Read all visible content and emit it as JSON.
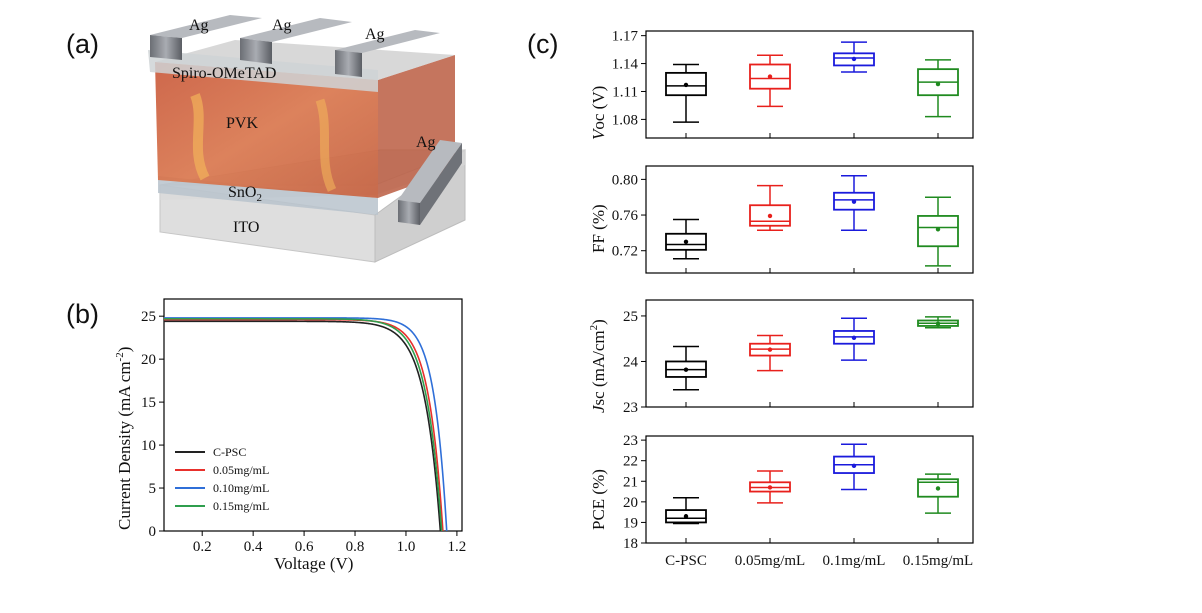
{
  "panels": {
    "a": "(a)",
    "b": "(b)",
    "c": "(c)"
  },
  "device": {
    "electrodes": [
      "Ag",
      "Ag",
      "Ag",
      "Ag"
    ],
    "layers": [
      "Spiro-OMeTAD",
      "PVK",
      "SnO",
      "ITO"
    ],
    "sno2_subscript": "2",
    "colors": {
      "perovskite": "#cc6a48",
      "glass": "#dcdcdc",
      "silver": "#8a8d94"
    }
  },
  "chart_data": [
    {
      "type": "line",
      "title": "",
      "xlabel": "Voltage (V)",
      "ylabel": "Current Density (mA cm",
      "ylabel_sup": "-2",
      "ylabel_close": ")",
      "xlim": [
        0.05,
        1.22
      ],
      "ylim": [
        0,
        27
      ],
      "xticks": [
        "0.2",
        "0.4",
        "0.6",
        "0.8",
        "1.0",
        "1.2"
      ],
      "yticks": [
        "0",
        "5",
        "10",
        "15",
        "20",
        "25"
      ],
      "legend_position": "bottom-left",
      "series": [
        {
          "name": "C-PSC",
          "color": "#222222",
          "jsc": 24.4,
          "voc": 1.135,
          "knee": 0.062
        },
        {
          "name": "0.05mg/mL",
          "color": "#e8302c",
          "jsc": 24.6,
          "voc": 1.145,
          "knee": 0.056
        },
        {
          "name": "0.10mg/mL",
          "color": "#2f6fd8",
          "jsc": 24.8,
          "voc": 1.16,
          "knee": 0.05
        },
        {
          "name": "0.15mg/mL",
          "color": "#2f9e4e",
          "jsc": 24.7,
          "voc": 1.14,
          "knee": 0.06
        }
      ]
    },
    {
      "type": "box",
      "ylabel": "Voc (V)",
      "ylabel_italic": "V",
      "ylabel_rest": "oc (V)",
      "ylim": [
        1.06,
        1.175
      ],
      "yticks": [
        "1.08",
        "1.11",
        "1.14",
        "1.17"
      ],
      "categories": [
        "C-PSC",
        "0.05mg/mL",
        "0.1mg/mL",
        "0.15mg/mL"
      ],
      "colors": [
        "#000000",
        "#e8201c",
        "#1a1adc",
        "#1f8a1f"
      ],
      "boxes": [
        {
          "min": 1.077,
          "q1": 1.106,
          "median": 1.116,
          "q3": 1.13,
          "max": 1.139,
          "mean": 1.117
        },
        {
          "min": 1.094,
          "q1": 1.113,
          "median": 1.124,
          "q3": 1.139,
          "max": 1.149,
          "mean": 1.126
        },
        {
          "min": 1.131,
          "q1": 1.138,
          "median": 1.146,
          "q3": 1.151,
          "max": 1.163,
          "mean": 1.145
        },
        {
          "min": 1.083,
          "q1": 1.106,
          "median": 1.12,
          "q3": 1.134,
          "max": 1.144,
          "mean": 1.118
        }
      ]
    },
    {
      "type": "box",
      "ylabel": "FF (%)",
      "ylim": [
        0.695,
        0.815
      ],
      "yticks": [
        "0.72",
        "0.76",
        "0.80"
      ],
      "categories": [
        "C-PSC",
        "0.05mg/mL",
        "0.1mg/mL",
        "0.15mg/mL"
      ],
      "colors": [
        "#000000",
        "#e8201c",
        "#1a1adc",
        "#1f8a1f"
      ],
      "boxes": [
        {
          "min": 0.711,
          "q1": 0.721,
          "median": 0.727,
          "q3": 0.739,
          "max": 0.755,
          "mean": 0.73
        },
        {
          "min": 0.743,
          "q1": 0.748,
          "median": 0.753,
          "q3": 0.771,
          "max": 0.793,
          "mean": 0.759
        },
        {
          "min": 0.743,
          "q1": 0.766,
          "median": 0.777,
          "q3": 0.785,
          "max": 0.804,
          "mean": 0.775
        },
        {
          "min": 0.703,
          "q1": 0.725,
          "median": 0.746,
          "q3": 0.759,
          "max": 0.78,
          "mean": 0.744
        }
      ]
    },
    {
      "type": "box",
      "ylabel": "Jsc (mA/cm",
      "ylabel_italic": "J",
      "ylabel_rest": "sc (mA/cm",
      "ylabel_sup": "2",
      "ylabel_close": ")",
      "ylim": [
        23.0,
        25.35
      ],
      "yticks": [
        "23",
        "24",
        "25"
      ],
      "categories": [
        "C-PSC",
        "0.05mg/mL",
        "0.1mg/mL",
        "0.15mg/mL"
      ],
      "colors": [
        "#000000",
        "#e8201c",
        "#1a1adc",
        "#1f8a1f"
      ],
      "boxes": [
        {
          "min": 23.38,
          "q1": 23.66,
          "median": 23.82,
          "q3": 24.0,
          "max": 24.33,
          "mean": 23.82
        },
        {
          "min": 23.8,
          "q1": 24.13,
          "median": 24.27,
          "q3": 24.39,
          "max": 24.57,
          "mean": 24.26
        },
        {
          "min": 24.03,
          "q1": 24.39,
          "median": 24.54,
          "q3": 24.67,
          "max": 24.95,
          "mean": 24.52
        },
        {
          "min": 24.74,
          "q1": 24.78,
          "median": 24.84,
          "q3": 24.9,
          "max": 24.98,
          "mean": 24.83
        }
      ]
    },
    {
      "type": "box",
      "ylabel": "PCE (%)",
      "ylim": [
        18,
        23.2
      ],
      "yticks": [
        "18",
        "19",
        "20",
        "21",
        "22",
        "23"
      ],
      "categories": [
        "C-PSC",
        "0.05mg/mL",
        "0.1mg/mL",
        "0.15mg/mL"
      ],
      "colors": [
        "#000000",
        "#e8201c",
        "#1a1adc",
        "#1f8a1f"
      ],
      "boxes": [
        {
          "min": 18.95,
          "q1": 19.0,
          "median": 19.2,
          "q3": 19.6,
          "max": 20.2,
          "mean": 19.3
        },
        {
          "min": 19.95,
          "q1": 20.5,
          "median": 20.7,
          "q3": 20.95,
          "max": 21.5,
          "mean": 20.7
        },
        {
          "min": 20.6,
          "q1": 21.4,
          "median": 21.8,
          "q3": 22.2,
          "max": 22.8,
          "mean": 21.75
        },
        {
          "min": 19.45,
          "q1": 20.25,
          "median": 20.95,
          "q3": 21.1,
          "max": 21.35,
          "mean": 20.65
        }
      ]
    }
  ]
}
